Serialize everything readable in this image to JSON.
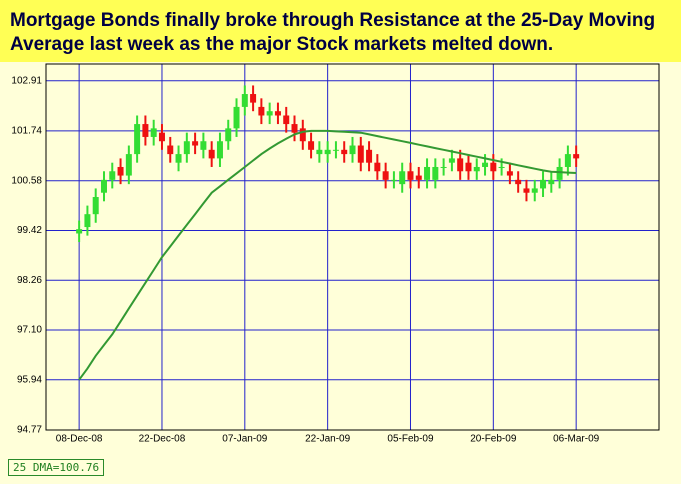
{
  "chart_data": {
    "type": "candlestick",
    "title": "Mortgage Bonds finally broke through Resistance at the 25-Day Moving Average last week as the major Stock markets melted down.",
    "legend_label": "25 DMA=100.76",
    "up_color": "#33dd33",
    "down_color": "#ee1111",
    "grid": true,
    "grid_color": "#2222cc",
    "ylim": [
      94.77,
      103.3
    ],
    "yticks": [
      {
        "value": 94.77,
        "label": "94.77"
      },
      {
        "value": 95.94,
        "label": "95.94"
      },
      {
        "value": 97.1,
        "label": "97.10"
      },
      {
        "value": 98.26,
        "label": "98.26"
      },
      {
        "value": 99.42,
        "label": "99.42"
      },
      {
        "value": 100.58,
        "label": "100.58"
      },
      {
        "value": 101.74,
        "label": "101.74"
      },
      {
        "value": 102.91,
        "label": "102.91"
      }
    ],
    "xlim": [
      -4,
      70
    ],
    "xticks": [
      {
        "value": 0,
        "label": "08-Dec-08"
      },
      {
        "value": 10,
        "label": "22-Dec-08"
      },
      {
        "value": 20,
        "label": "07-Jan-09"
      },
      {
        "value": 30,
        "label": "22-Jan-09"
      },
      {
        "value": 40,
        "label": "05-Feb-09"
      },
      {
        "value": 50,
        "label": "20-Feb-09"
      },
      {
        "value": 60,
        "label": "06-Mar-09"
      }
    ],
    "open": [
      99.35,
      99.5,
      99.8,
      100.3,
      100.6,
      100.9,
      100.7,
      101.2,
      101.9,
      101.6,
      101.7,
      101.4,
      101.0,
      101.2,
      101.5,
      101.3,
      101.3,
      101.1,
      101.5,
      101.8,
      102.3,
      102.6,
      102.3,
      102.1,
      102.2,
      102.1,
      101.9,
      101.8,
      101.5,
      101.2,
      101.2,
      101.3,
      101.3,
      101.2,
      101.4,
      101.3,
      101.0,
      100.8,
      100.6,
      100.5,
      100.8,
      100.7,
      100.6,
      100.6,
      100.9,
      101.0,
      101.1,
      101.0,
      100.8,
      100.9,
      101.0,
      100.9,
      100.8,
      100.6,
      100.4,
      100.3,
      100.4,
      100.5,
      100.6,
      100.9,
      101.2
    ],
    "high": [
      99.65,
      100.0,
      100.4,
      100.8,
      101.0,
      101.1,
      101.4,
      102.1,
      102.1,
      102.0,
      101.9,
      101.6,
      101.4,
      101.7,
      101.7,
      101.7,
      101.5,
      101.7,
      102.0,
      102.5,
      102.8,
      102.8,
      102.5,
      102.4,
      102.4,
      102.3,
      102.1,
      102.0,
      101.7,
      101.5,
      101.5,
      101.5,
      101.5,
      101.6,
      101.6,
      101.5,
      101.2,
      101.0,
      100.8,
      101.0,
      101.0,
      100.9,
      101.1,
      101.1,
      101.1,
      101.3,
      101.3,
      101.2,
      101.1,
      101.2,
      101.2,
      101.1,
      101.0,
      100.8,
      100.6,
      100.6,
      100.8,
      100.8,
      101.1,
      101.4,
      101.4
    ],
    "low": [
      99.15,
      99.3,
      99.6,
      100.1,
      100.4,
      100.5,
      100.5,
      101.0,
      101.4,
      101.4,
      101.3,
      101.0,
      100.8,
      101.0,
      101.2,
      101.1,
      100.9,
      100.9,
      101.3,
      101.6,
      102.1,
      102.2,
      101.9,
      101.9,
      101.9,
      101.7,
      101.5,
      101.3,
      101.1,
      101.0,
      101.0,
      101.1,
      101.0,
      101.0,
      100.8,
      100.8,
      100.6,
      100.4,
      100.4,
      100.3,
      100.4,
      100.4,
      100.4,
      100.4,
      100.7,
      100.8,
      100.6,
      100.6,
      100.6,
      100.7,
      100.6,
      100.7,
      100.5,
      100.3,
      100.1,
      100.1,
      100.2,
      100.3,
      100.4,
      100.7,
      100.9
    ],
    "close": [
      99.45,
      99.8,
      100.2,
      100.6,
      100.8,
      100.7,
      101.2,
      101.9,
      101.6,
      101.8,
      101.5,
      101.2,
      101.2,
      101.5,
      101.4,
      101.5,
      101.1,
      101.5,
      101.8,
      102.3,
      102.6,
      102.4,
      102.1,
      102.2,
      102.1,
      101.9,
      101.7,
      101.5,
      101.3,
      101.3,
      101.3,
      101.3,
      101.2,
      101.4,
      101.0,
      101.0,
      100.8,
      100.6,
      100.6,
      100.8,
      100.6,
      100.6,
      100.9,
      100.9,
      100.9,
      101.1,
      100.8,
      100.8,
      100.9,
      101.0,
      100.8,
      100.9,
      100.7,
      100.5,
      100.3,
      100.4,
      100.6,
      100.6,
      100.9,
      101.2,
      101.1
    ],
    "dma": {
      "color": "#339933",
      "values": [
        95.94,
        96.2,
        96.5,
        96.75,
        97.0,
        97.3,
        97.6,
        97.9,
        98.2,
        98.5,
        98.8,
        99.05,
        99.3,
        99.55,
        99.8,
        100.05,
        100.3,
        100.45,
        100.6,
        100.75,
        100.9,
        101.05,
        101.2,
        101.33,
        101.45,
        101.56,
        101.66,
        101.72,
        101.74,
        101.74,
        101.74,
        101.73,
        101.72,
        101.71,
        101.7,
        101.66,
        101.62,
        101.58,
        101.54,
        101.5,
        101.46,
        101.42,
        101.38,
        101.34,
        101.3,
        101.26,
        101.22,
        101.18,
        101.14,
        101.1,
        101.06,
        101.02,
        100.98,
        100.94,
        100.9,
        100.86,
        100.82,
        100.79,
        100.78,
        100.77,
        100.76
      ]
    }
  }
}
